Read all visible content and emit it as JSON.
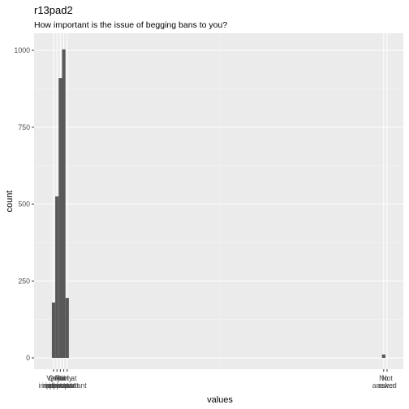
{
  "chart_data": {
    "type": "bar",
    "title": "r13pad2",
    "subtitle": "How important is the issue of begging bans to you?",
    "xlabel": "values",
    "ylabel": "count",
    "ylim": [
      0,
      1050
    ],
    "y_ticks": [
      0,
      250,
      500,
      750,
      1000
    ],
    "y_tick_labels": [
      "0",
      "250",
      "500",
      "750",
      "1000"
    ],
    "x_tick_labels": [
      "Very important",
      "Quite important",
      "Not important",
      "Fairly important",
      "Not at all important",
      "No answer",
      "Not asked"
    ],
    "categories": [
      "1",
      "2",
      "3",
      "4",
      "5",
      "-1",
      "-2"
    ],
    "x": [
      1,
      2,
      3,
      4,
      5,
      98,
      99
    ],
    "values": [
      180,
      525,
      910,
      1003,
      195,
      11,
      0
    ],
    "grid": true,
    "bar_color": "#595959",
    "panel_color": "#ebebeb",
    "grid_color": "#ffffff"
  }
}
